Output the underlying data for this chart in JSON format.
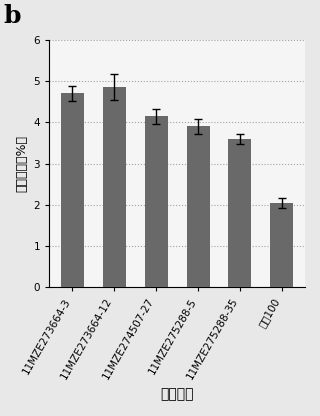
{
  "categories": [
    "11MZE273664-3",
    "11MZE273664-12",
    "11MZE274507-27",
    "11MZE275288-5",
    "11MZE275288-35",
    "中烟100"
  ],
  "values": [
    4.7,
    4.85,
    4.15,
    3.9,
    3.6,
    2.05
  ],
  "errors": [
    0.18,
    0.32,
    0.18,
    0.18,
    0.12,
    0.12
  ],
  "bar_color": "#696969",
  "figure_bg_color": "#e8e8e8",
  "axes_bg_color": "#f5f5f5",
  "ylabel": "烟碱含量（%）",
  "xlabel": "品株编号",
  "title": "b",
  "ylim": [
    0,
    6
  ],
  "yticks": [
    0,
    1,
    2,
    3,
    4,
    5,
    6
  ],
  "bar_width": 0.55,
  "title_fontsize": 18,
  "label_fontsize": 9,
  "tick_fontsize": 7.5,
  "xlabel_fontsize": 10
}
